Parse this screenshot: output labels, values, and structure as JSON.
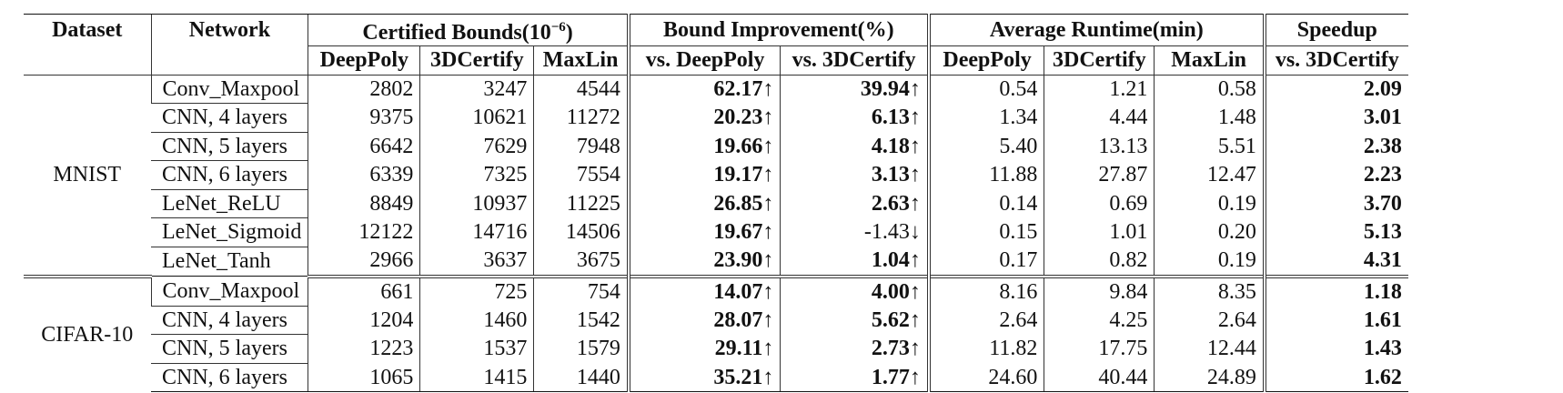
{
  "headers": {
    "dataset": "Dataset",
    "network": "Network",
    "cert_bounds": "Certified Bounds(10",
    "cert_bounds_exp": "−6",
    "cert_bounds_close": ")",
    "bound_impr": "Bound Improvement(%)",
    "avg_runtime": "Average Runtime(min)",
    "speedup": "Speedup",
    "deeppoly": "DeepPoly",
    "certify3d": "3DCertify",
    "maxlin": "MaxLin",
    "vs_deeppoly": "vs. DeepPoly",
    "vs_3dcertify": "vs. 3DCertify",
    "rt_deeppoly": "DeepPoly",
    "rt_3dcertify": "3DCertify",
    "rt_maxlin": "MaxLin",
    "speedup_vs": "vs. 3DCertify"
  },
  "groups": [
    {
      "dataset": "MNIST",
      "rows": [
        {
          "network": "Conv_Maxpool",
          "deeppoly": "2802",
          "certify3d": "3247",
          "maxlin": "4544",
          "imp_dp": "62.17",
          "imp_dp_arrow": "↑",
          "imp_3d": "39.94",
          "imp_3d_arrow": "↑",
          "rt_dp": "0.54",
          "rt_3d": "1.21",
          "rt_ml": "0.58",
          "speedup": "2.09"
        },
        {
          "network": "CNN, 4 layers",
          "deeppoly": "9375",
          "certify3d": "10621",
          "maxlin": "11272",
          "imp_dp": "20.23",
          "imp_dp_arrow": "↑",
          "imp_3d": "6.13",
          "imp_3d_arrow": "↑",
          "rt_dp": "1.34",
          "rt_3d": "4.44",
          "rt_ml": "1.48",
          "speedup": "3.01"
        },
        {
          "network": "CNN, 5 layers",
          "deeppoly": "6642",
          "certify3d": "7629",
          "maxlin": "7948",
          "imp_dp": "19.66",
          "imp_dp_arrow": "↑",
          "imp_3d": "4.18",
          "imp_3d_arrow": "↑",
          "rt_dp": "5.40",
          "rt_3d": "13.13",
          "rt_ml": "5.51",
          "speedup": "2.38"
        },
        {
          "network": "CNN, 6 layers",
          "deeppoly": "6339",
          "certify3d": "7325",
          "maxlin": "7554",
          "imp_dp": "19.17",
          "imp_dp_arrow": "↑",
          "imp_3d": "3.13",
          "imp_3d_arrow": "↑",
          "rt_dp": "11.88",
          "rt_3d": "27.87",
          "rt_ml": "12.47",
          "speedup": "2.23"
        },
        {
          "network": "LeNet_ReLU",
          "deeppoly": "8849",
          "certify3d": "10937",
          "maxlin": "11225",
          "imp_dp": "26.85",
          "imp_dp_arrow": "↑",
          "imp_3d": "2.63",
          "imp_3d_arrow": "↑",
          "rt_dp": "0.14",
          "rt_3d": "0.69",
          "rt_ml": "0.19",
          "speedup": "3.70"
        },
        {
          "network": "LeNet_Sigmoid",
          "deeppoly": "12122",
          "certify3d": "14716",
          "maxlin": "14506",
          "imp_dp": "19.67",
          "imp_dp_arrow": "↑",
          "imp_3d": "-1.43",
          "imp_3d_arrow": "↓",
          "imp_3d_bold": false,
          "rt_dp": "0.15",
          "rt_3d": "1.01",
          "rt_ml": "0.20",
          "speedup": "5.13"
        },
        {
          "network": "LeNet_Tanh",
          "deeppoly": "2966",
          "certify3d": "3637",
          "maxlin": "3675",
          "imp_dp": "23.90",
          "imp_dp_arrow": "↑",
          "imp_3d": "1.04",
          "imp_3d_arrow": "↑",
          "rt_dp": "0.17",
          "rt_3d": "0.82",
          "rt_ml": "0.19",
          "speedup": "4.31"
        }
      ]
    },
    {
      "dataset": "CIFAR-10",
      "rows": [
        {
          "network": "Conv_Maxpool",
          "deeppoly": "661",
          "certify3d": "725",
          "maxlin": "754",
          "imp_dp": "14.07",
          "imp_dp_arrow": "↑",
          "imp_3d": "4.00",
          "imp_3d_arrow": "↑",
          "rt_dp": "8.16",
          "rt_3d": "9.84",
          "rt_ml": "8.35",
          "speedup": "1.18"
        },
        {
          "network": "CNN, 4 layers",
          "deeppoly": "1204",
          "certify3d": "1460",
          "maxlin": "1542",
          "imp_dp": "28.07",
          "imp_dp_arrow": "↑",
          "imp_3d": "5.62",
          "imp_3d_arrow": "↑",
          "rt_dp": "2.64",
          "rt_3d": "4.25",
          "rt_ml": "2.64",
          "speedup": "1.61"
        },
        {
          "network": "CNN, 5 layers",
          "deeppoly": "1223",
          "certify3d": "1537",
          "maxlin": "1579",
          "imp_dp": "29.11",
          "imp_dp_arrow": "↑",
          "imp_3d": "2.73",
          "imp_3d_arrow": "↑",
          "rt_dp": "11.82",
          "rt_3d": "17.75",
          "rt_ml": "12.44",
          "speedup": "1.43"
        },
        {
          "network": "CNN, 6 layers",
          "deeppoly": "1065",
          "certify3d": "1415",
          "maxlin": "1440",
          "imp_dp": "35.21",
          "imp_dp_arrow": "↑",
          "imp_3d": "1.77",
          "imp_3d_arrow": "↑",
          "rt_dp": "24.60",
          "rt_3d": "40.44",
          "rt_ml": "24.89",
          "speedup": "1.62"
        }
      ]
    }
  ]
}
